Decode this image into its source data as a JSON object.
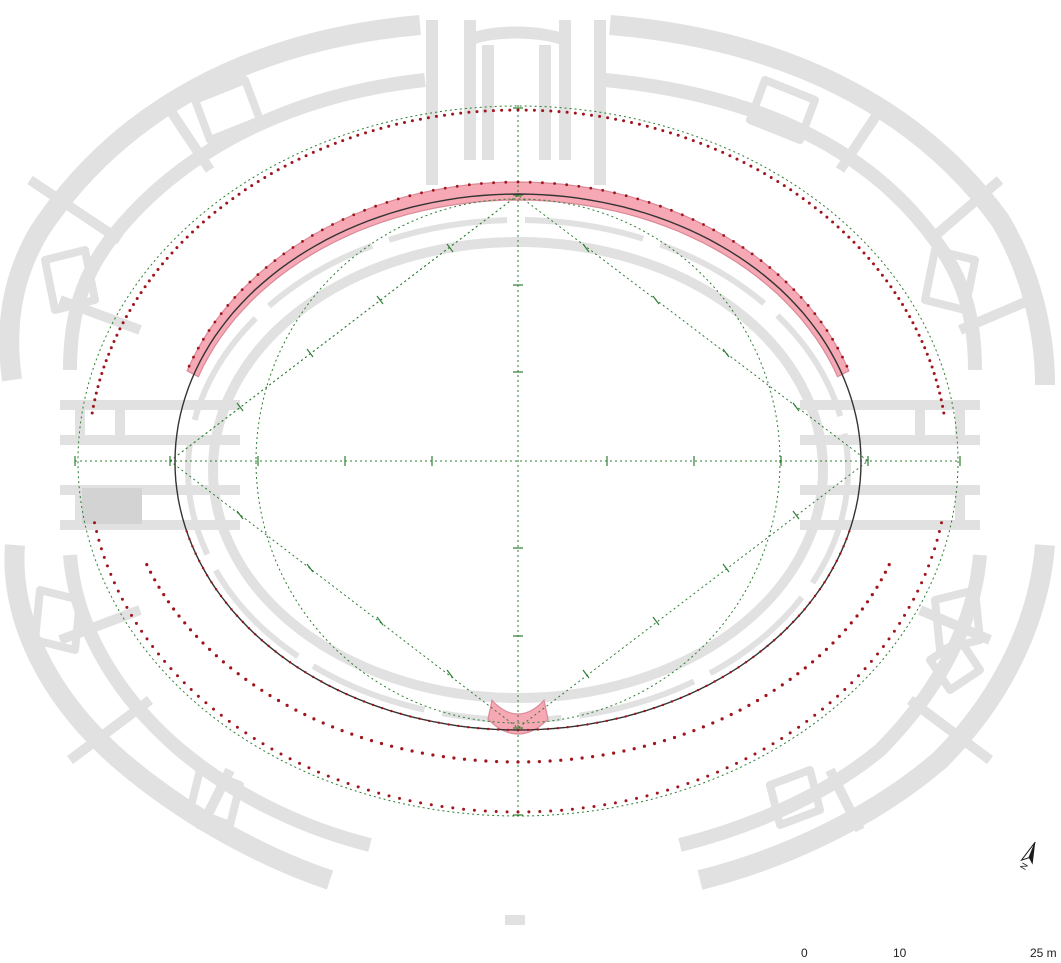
{
  "plan": {
    "colors": {
      "ruins": "#e1e1e1",
      "ruins_dark": "#cfcfcf",
      "highlight_fill": "#f6a8b4",
      "highlight_stroke": "#d98a98",
      "red_dots": "#a0141c",
      "green_construction": "#2e7d32",
      "arena_outline": "#222222"
    },
    "north_arrow": {
      "icon": "north-arrow-icon",
      "letter": "N"
    },
    "scale_bar": {
      "labels": [
        "0",
        "10",
        "25 m"
      ]
    }
  }
}
